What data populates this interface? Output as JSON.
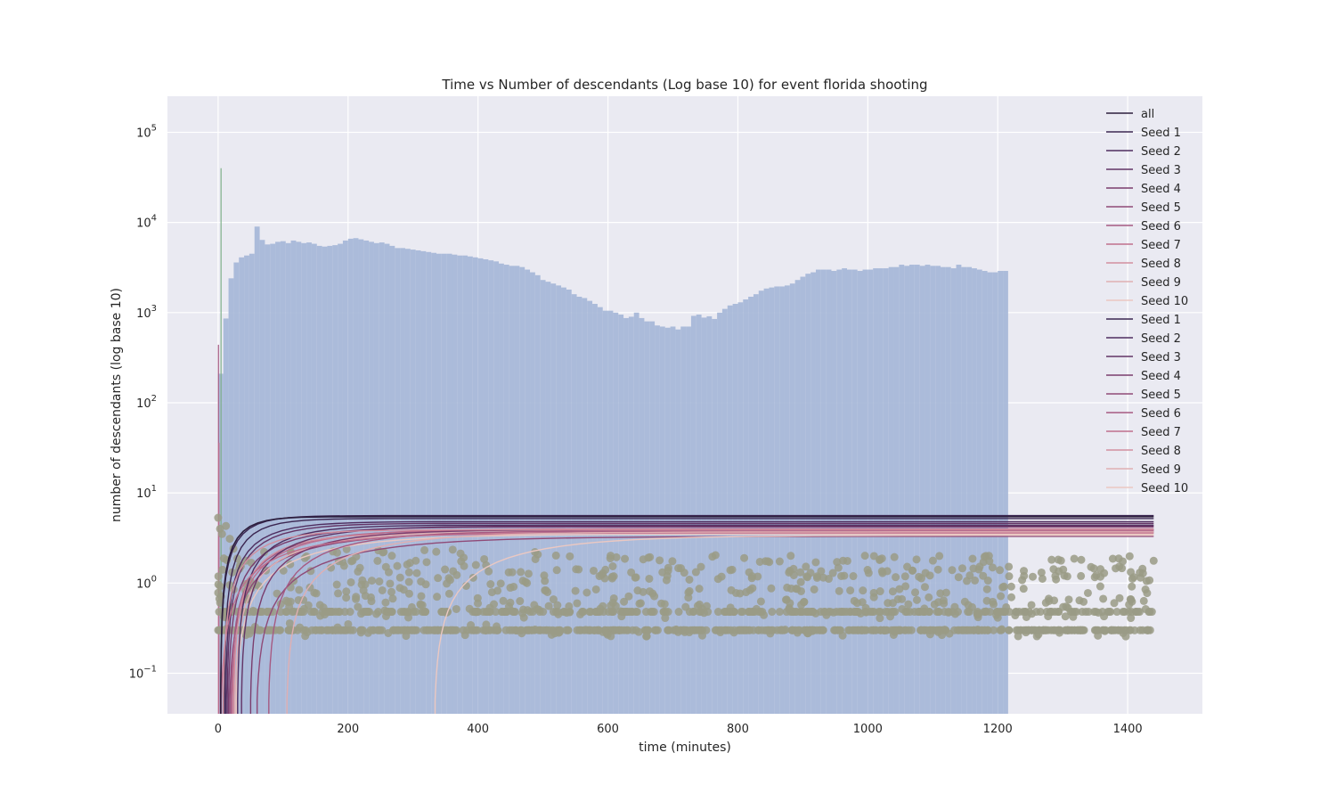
{
  "chart_data": {
    "type": "line",
    "title": "Time vs Number of descendants (Log base 10) for event florida shooting",
    "xlabel": "time (minutes)",
    "ylabel": "number of descendants (log base 10)",
    "xlim": [
      -78,
      1515
    ],
    "ylim_exponent": [
      -1.45,
      5.4
    ],
    "y_scale": "log",
    "x_ticks": [
      0,
      200,
      400,
      600,
      800,
      1000,
      1200,
      1400
    ],
    "x_tick_labels": [
      "0",
      "200",
      "400",
      "600",
      "800",
      "1000",
      "1200",
      "1400"
    ],
    "y_ticks_exponent": [
      -1,
      0,
      1,
      2,
      3,
      4,
      5
    ],
    "grid": true,
    "legend_position": "top-right",
    "legend": [
      "all",
      "Seed 1",
      "Seed 2",
      "Seed 3",
      "Seed 4",
      "Seed 5",
      "Seed 6",
      "Seed 7",
      "Seed 8",
      "Seed 9",
      "Seed 10",
      "Seed 1",
      "Seed 2",
      "Seed 3",
      "Seed 4",
      "Seed 5",
      "Seed 6",
      "Seed 7",
      "Seed 8",
      "Seed 9",
      "Seed 10"
    ],
    "colors": {
      "background": "#eaeaf2",
      "grid": "#ffffff",
      "histogram": "#a8b8d8",
      "scatter": "#9a9b86",
      "palette": [
        "#2c1e3d",
        "#3b2651",
        "#4e2d5f",
        "#633466",
        "#7a3d6d",
        "#8f4a77",
        "#a65a82",
        "#bf6f8d",
        "#d18f9f",
        "#e0afb2",
        "#ebc8c2"
      ]
    },
    "histogram": {
      "name": "all",
      "bin_width": 8,
      "x_start": 0,
      "counts": [
        210,
        860,
        2400,
        3600,
        4100,
        4300,
        4500,
        9000,
        6400,
        5700,
        5800,
        6100,
        6200,
        5900,
        6300,
        6100,
        5900,
        6000,
        5800,
        5500,
        5400,
        5500,
        5600,
        5800,
        6300,
        6600,
        6700,
        6500,
        6300,
        6100,
        5900,
        6000,
        5800,
        5500,
        5200,
        5200,
        5100,
        5000,
        4900,
        4800,
        4700,
        4600,
        4500,
        4500,
        4500,
        4400,
        4300,
        4300,
        4200,
        4100,
        4000,
        3900,
        3800,
        3700,
        3500,
        3400,
        3300,
        3300,
        3200,
        3000,
        2800,
        2600,
        2300,
        2200,
        2100,
        2000,
        1900,
        1800,
        1600,
        1500,
        1450,
        1350,
        1250,
        1150,
        1050,
        1050,
        1000,
        950,
        870,
        900,
        1000,
        870,
        800,
        800,
        720,
        700,
        680,
        700,
        650,
        700,
        700,
        920,
        950,
        880,
        910,
        850,
        1000,
        1100,
        1200,
        1250,
        1300,
        1400,
        1500,
        1600,
        1750,
        1850,
        1900,
        1950,
        1950,
        2000,
        2100,
        2300,
        2500,
        2700,
        2800,
        3000,
        3000,
        3000,
        2900,
        3000,
        3100,
        3000,
        3000,
        2900,
        3000,
        3000,
        3100,
        3100,
        3100,
        3200,
        3200,
        3400,
        3300,
        3400,
        3400,
        3300,
        3400,
        3300,
        3300,
        3200,
        3200,
        3100,
        3400,
        3200,
        3200,
        3100,
        3000,
        2900,
        2800,
        2800,
        2900,
        2900
      ]
    },
    "spikes": [
      {
        "x": 0.5,
        "top": 440
      },
      {
        "x": 1.2,
        "top": 36
      },
      {
        "x": 4.5,
        "top": 40000
      }
    ],
    "series": [
      {
        "name": "Seed 1",
        "y_min": 0.05,
        "y_max": 5.6,
        "ramp": 35
      },
      {
        "name": "Seed 2",
        "y_min": 0.05,
        "y_max": 4.8,
        "ramp": 55
      },
      {
        "name": "Seed 3",
        "y_min": 0.05,
        "y_max": 4.6,
        "ramp": 60
      },
      {
        "name": "Seed 4",
        "y_min": 0.05,
        "y_max": 4.2,
        "ramp": 80
      },
      {
        "name": "Seed 5",
        "y_min": 0.05,
        "y_max": 3.7,
        "ramp": 120
      },
      {
        "name": "Seed 6",
        "y_min": 0.05,
        "y_max": 3.9,
        "ramp": 90
      },
      {
        "name": "Seed 7",
        "y_min": 0.05,
        "y_max": 4.0,
        "ramp": 100
      },
      {
        "name": "Seed 8",
        "y_min": 0.05,
        "y_max": 3.6,
        "ramp": 70
      },
      {
        "name": "Seed 9",
        "y_min": 0.05,
        "y_max": 3.8,
        "ramp": 110
      },
      {
        "name": "Seed 10",
        "y_min": 0.05,
        "y_max": 3.5,
        "ramp": 130
      },
      {
        "name": "Seed 1",
        "y_min": 0.05,
        "y_max": 5.2,
        "ramp": 40
      },
      {
        "name": "Seed 2",
        "y_min": 0.05,
        "y_max": 4.4,
        "ramp": 65
      },
      {
        "name": "Seed 3",
        "y_min": 0.05,
        "y_max": 4.3,
        "ramp": 85
      },
      {
        "name": "Seed 4",
        "y_min": 0.05,
        "y_max": 3.9,
        "ramp": 95
      },
      {
        "name": "Seed 5",
        "y_min": 0.05,
        "y_max": 3.3,
        "ramp": 150
      },
      {
        "name": "Seed 6",
        "y_min": 0.05,
        "y_max": 3.8,
        "ramp": 105
      },
      {
        "name": "Seed 7",
        "y_min": 0.05,
        "y_max": 3.6,
        "ramp": 115
      },
      {
        "name": "Seed 8",
        "y_min": 0.05,
        "y_max": 3.9,
        "ramp": 60
      },
      {
        "name": "Seed 9",
        "y_min": 0.05,
        "y_max": 3.7,
        "ramp": 125
      },
      {
        "name": "Seed 10",
        "y_min": 0.05,
        "y_max": 3.4,
        "ramp": 140
      }
    ],
    "series_start_x": [
      4,
      12,
      14,
      16,
      18,
      20,
      22,
      24,
      26,
      28,
      10,
      30,
      36,
      50,
      60,
      78,
      5,
      8,
      106,
      334
    ],
    "scatter_levels": [
      0.3,
      0.48,
      0.6,
      0.7,
      0.9,
      1.2,
      1.5,
      2.0
    ],
    "scatter_x_range": [
      0,
      1440
    ]
  }
}
